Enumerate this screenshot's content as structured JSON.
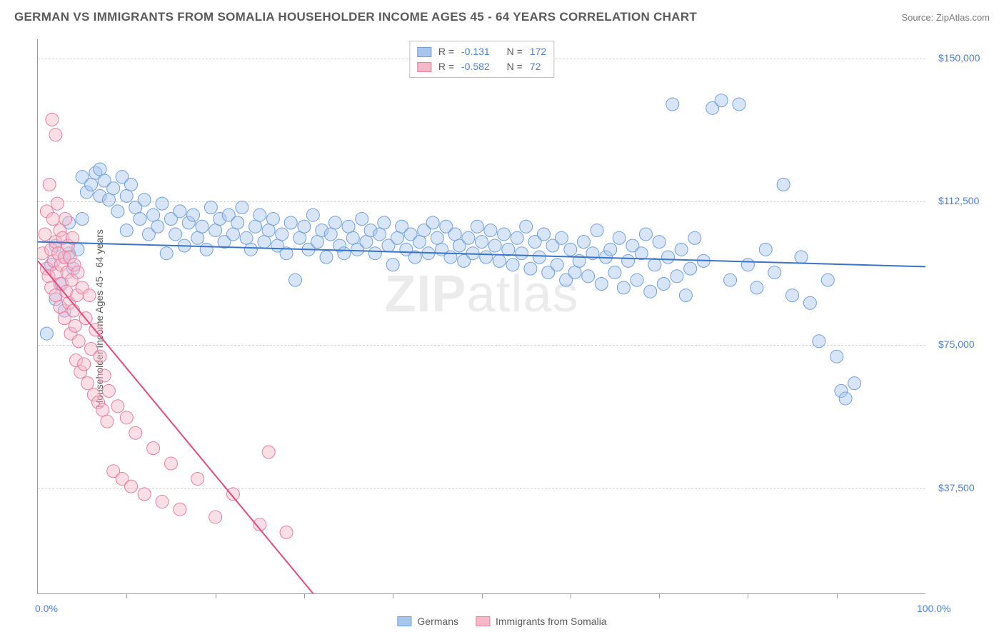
{
  "title": "GERMAN VS IMMIGRANTS FROM SOMALIA HOUSEHOLDER INCOME AGES 45 - 64 YEARS CORRELATION CHART",
  "source": "Source: ZipAtlas.com",
  "ylabel": "Householder Income Ages 45 - 64 years",
  "watermark_a": "ZIP",
  "watermark_b": "atlas",
  "chart": {
    "type": "scatter",
    "background_color": "#ffffff",
    "grid_color": "#d5d5d5",
    "axis_color": "#9a9a9a",
    "xlim": [
      0,
      100
    ],
    "ylim": [
      10000,
      155000
    ],
    "x_ticks_minor": [
      10,
      20,
      30,
      40,
      50,
      60,
      70,
      80,
      90
    ],
    "x_ticks_labels": [
      {
        "pos": 0,
        "label": "0.0%"
      },
      {
        "pos": 100,
        "label": "100.0%"
      }
    ],
    "y_ticks": [
      {
        "pos": 37500,
        "label": "$37,500"
      },
      {
        "pos": 75000,
        "label": "$75,000"
      },
      {
        "pos": 112500,
        "label": "$112,500"
      },
      {
        "pos": 150000,
        "label": "$150,000"
      }
    ],
    "marker_radius": 9,
    "marker_opacity": 0.45,
    "line_width": 2,
    "series": [
      {
        "id": "germans",
        "label": "Germans",
        "fill": "#a7c5ed",
        "stroke": "#6f9fde",
        "line_color": "#3a74c9",
        "R": "-0.131",
        "N": "172",
        "trend": {
          "x1": 0,
          "y1": 102000,
          "x2": 100,
          "y2": 95500
        },
        "points": [
          [
            1,
            78000
          ],
          [
            1.5,
            96000
          ],
          [
            2,
            101000
          ],
          [
            2,
            87000
          ],
          [
            2.5,
            91000
          ],
          [
            3,
            98000
          ],
          [
            3,
            84000
          ],
          [
            3.5,
            99000
          ],
          [
            3.5,
            107000
          ],
          [
            4,
            95000
          ],
          [
            4.5,
            100000
          ],
          [
            5,
            108000
          ],
          [
            5,
            119000
          ],
          [
            5.5,
            115000
          ],
          [
            6,
            117000
          ],
          [
            6.5,
            120000
          ],
          [
            7,
            114000
          ],
          [
            7,
            121000
          ],
          [
            7.5,
            118000
          ],
          [
            8,
            113000
          ],
          [
            8.5,
            116000
          ],
          [
            9,
            110000
          ],
          [
            9.5,
            119000
          ],
          [
            10,
            105000
          ],
          [
            10,
            114000
          ],
          [
            10.5,
            117000
          ],
          [
            11,
            111000
          ],
          [
            11.5,
            108000
          ],
          [
            12,
            113000
          ],
          [
            12.5,
            104000
          ],
          [
            13,
            109000
          ],
          [
            13.5,
            106000
          ],
          [
            14,
            112000
          ],
          [
            14.5,
            99000
          ],
          [
            15,
            108000
          ],
          [
            15.5,
            104000
          ],
          [
            16,
            110000
          ],
          [
            16.5,
            101000
          ],
          [
            17,
            107000
          ],
          [
            17.5,
            109000
          ],
          [
            18,
            103000
          ],
          [
            18.5,
            106000
          ],
          [
            19,
            100000
          ],
          [
            19.5,
            111000
          ],
          [
            20,
            105000
          ],
          [
            20.5,
            108000
          ],
          [
            21,
            102000
          ],
          [
            21.5,
            109000
          ],
          [
            22,
            104000
          ],
          [
            22.5,
            107000
          ],
          [
            23,
            111000
          ],
          [
            23.5,
            103000
          ],
          [
            24,
            100000
          ],
          [
            24.5,
            106000
          ],
          [
            25,
            109000
          ],
          [
            25.5,
            102000
          ],
          [
            26,
            105000
          ],
          [
            26.5,
            108000
          ],
          [
            27,
            101000
          ],
          [
            27.5,
            104000
          ],
          [
            28,
            99000
          ],
          [
            28.5,
            107000
          ],
          [
            29,
            92000
          ],
          [
            29.5,
            103000
          ],
          [
            30,
            106000
          ],
          [
            30.5,
            100000
          ],
          [
            31,
            109000
          ],
          [
            31.5,
            102000
          ],
          [
            32,
            105000
          ],
          [
            32.5,
            98000
          ],
          [
            33,
            104000
          ],
          [
            33.5,
            107000
          ],
          [
            34,
            101000
          ],
          [
            34.5,
            99000
          ],
          [
            35,
            106000
          ],
          [
            35.5,
            103000
          ],
          [
            36,
            100000
          ],
          [
            36.5,
            108000
          ],
          [
            37,
            102000
          ],
          [
            37.5,
            105000
          ],
          [
            38,
            99000
          ],
          [
            38.5,
            104000
          ],
          [
            39,
            107000
          ],
          [
            39.5,
            101000
          ],
          [
            40,
            96000
          ],
          [
            40.5,
            103000
          ],
          [
            41,
            106000
          ],
          [
            41.5,
            100000
          ],
          [
            42,
            104000
          ],
          [
            42.5,
            98000
          ],
          [
            43,
            102000
          ],
          [
            43.5,
            105000
          ],
          [
            44,
            99000
          ],
          [
            44.5,
            107000
          ],
          [
            45,
            103000
          ],
          [
            45.5,
            100000
          ],
          [
            46,
            106000
          ],
          [
            46.5,
            98000
          ],
          [
            47,
            104000
          ],
          [
            47.5,
            101000
          ],
          [
            48,
            97000
          ],
          [
            48.5,
            103000
          ],
          [
            49,
            99000
          ],
          [
            49.5,
            106000
          ],
          [
            50,
            102000
          ],
          [
            50.5,
            98000
          ],
          [
            51,
            105000
          ],
          [
            51.5,
            101000
          ],
          [
            52,
            97000
          ],
          [
            52.5,
            104000
          ],
          [
            53,
            100000
          ],
          [
            53.5,
            96000
          ],
          [
            54,
            103000
          ],
          [
            54.5,
            99000
          ],
          [
            55,
            106000
          ],
          [
            55.5,
            95000
          ],
          [
            56,
            102000
          ],
          [
            56.5,
            98000
          ],
          [
            57,
            104000
          ],
          [
            57.5,
            94000
          ],
          [
            58,
            101000
          ],
          [
            58.5,
            96000
          ],
          [
            59,
            103000
          ],
          [
            59.5,
            92000
          ],
          [
            60,
            100000
          ],
          [
            60.5,
            94000
          ],
          [
            61,
            97000
          ],
          [
            61.5,
            102000
          ],
          [
            62,
            93000
          ],
          [
            62.5,
            99000
          ],
          [
            63,
            105000
          ],
          [
            63.5,
            91000
          ],
          [
            64,
            98000
          ],
          [
            64.5,
            100000
          ],
          [
            65,
            94000
          ],
          [
            65.5,
            103000
          ],
          [
            66,
            90000
          ],
          [
            66.5,
            97000
          ],
          [
            67,
            101000
          ],
          [
            67.5,
            92000
          ],
          [
            68,
            99000
          ],
          [
            68.5,
            104000
          ],
          [
            69,
            89000
          ],
          [
            69.5,
            96000
          ],
          [
            70,
            102000
          ],
          [
            70.5,
            91000
          ],
          [
            71,
            98000
          ],
          [
            71.5,
            138000
          ],
          [
            72,
            93000
          ],
          [
            72.5,
            100000
          ],
          [
            73,
            88000
          ],
          [
            73.5,
            95000
          ],
          [
            74,
            103000
          ],
          [
            75,
            97000
          ],
          [
            76,
            137000
          ],
          [
            77,
            139000
          ],
          [
            78,
            92000
          ],
          [
            79,
            138000
          ],
          [
            80,
            96000
          ],
          [
            81,
            90000
          ],
          [
            82,
            100000
          ],
          [
            83,
            94000
          ],
          [
            84,
            117000
          ],
          [
            85,
            88000
          ],
          [
            86,
            98000
          ],
          [
            87,
            86000
          ],
          [
            88,
            76000
          ],
          [
            89,
            92000
          ],
          [
            90,
            72000
          ],
          [
            90.5,
            63000
          ],
          [
            91,
            61000
          ],
          [
            92,
            65000
          ]
        ]
      },
      {
        "id": "somalia",
        "label": "Immigrants from Somalia",
        "fill": "#f6b8c9",
        "stroke": "#e87d9e",
        "line_color": "#e8487e",
        "R": "-0.582",
        "N": "72",
        "trend": {
          "x1": 0,
          "y1": 97000,
          "x2": 31,
          "y2": 10000
        },
        "points": [
          [
            0.5,
            99000
          ],
          [
            0.8,
            104000
          ],
          [
            1,
            95000
          ],
          [
            1,
            110000
          ],
          [
            1.2,
            93000
          ],
          [
            1.3,
            117000
          ],
          [
            1.5,
            100000
          ],
          [
            1.5,
            90000
          ],
          [
            1.6,
            134000
          ],
          [
            1.7,
            108000
          ],
          [
            1.8,
            97000
          ],
          [
            2,
            130000
          ],
          [
            2,
            102000
          ],
          [
            2,
            88000
          ],
          [
            2.1,
            94000
          ],
          [
            2.2,
            112000
          ],
          [
            2.3,
            99000
          ],
          [
            2.5,
            105000
          ],
          [
            2.5,
            85000
          ],
          [
            2.6,
            96000
          ],
          [
            2.7,
            91000
          ],
          [
            2.8,
            103000
          ],
          [
            3,
            98000
          ],
          [
            3,
            82000
          ],
          [
            3.1,
            108000
          ],
          [
            3.2,
            89000
          ],
          [
            3.3,
            94000
          ],
          [
            3.4,
            101000
          ],
          [
            3.5,
            86000
          ],
          [
            3.6,
            98000
          ],
          [
            3.7,
            78000
          ],
          [
            3.8,
            92000
          ],
          [
            3.9,
            103000
          ],
          [
            4,
            84000
          ],
          [
            4.1,
            96000
          ],
          [
            4.2,
            80000
          ],
          [
            4.3,
            71000
          ],
          [
            4.4,
            88000
          ],
          [
            4.5,
            94000
          ],
          [
            4.6,
            76000
          ],
          [
            4.8,
            68000
          ],
          [
            5,
            90000
          ],
          [
            5.2,
            70000
          ],
          [
            5.4,
            82000
          ],
          [
            5.6,
            65000
          ],
          [
            5.8,
            88000
          ],
          [
            6,
            74000
          ],
          [
            6.3,
            62000
          ],
          [
            6.5,
            79000
          ],
          [
            6.8,
            60000
          ],
          [
            7,
            72000
          ],
          [
            7.3,
            58000
          ],
          [
            7.5,
            67000
          ],
          [
            7.8,
            55000
          ],
          [
            8,
            63000
          ],
          [
            8.5,
            42000
          ],
          [
            9,
            59000
          ],
          [
            9.5,
            40000
          ],
          [
            10,
            56000
          ],
          [
            10.5,
            38000
          ],
          [
            11,
            52000
          ],
          [
            12,
            36000
          ],
          [
            13,
            48000
          ],
          [
            14,
            34000
          ],
          [
            15,
            44000
          ],
          [
            16,
            32000
          ],
          [
            18,
            40000
          ],
          [
            20,
            30000
          ],
          [
            22,
            36000
          ],
          [
            25,
            28000
          ],
          [
            26,
            47000
          ],
          [
            28,
            26000
          ]
        ]
      }
    ]
  },
  "legend_top_labels": {
    "R": "R =",
    "N": "N ="
  }
}
